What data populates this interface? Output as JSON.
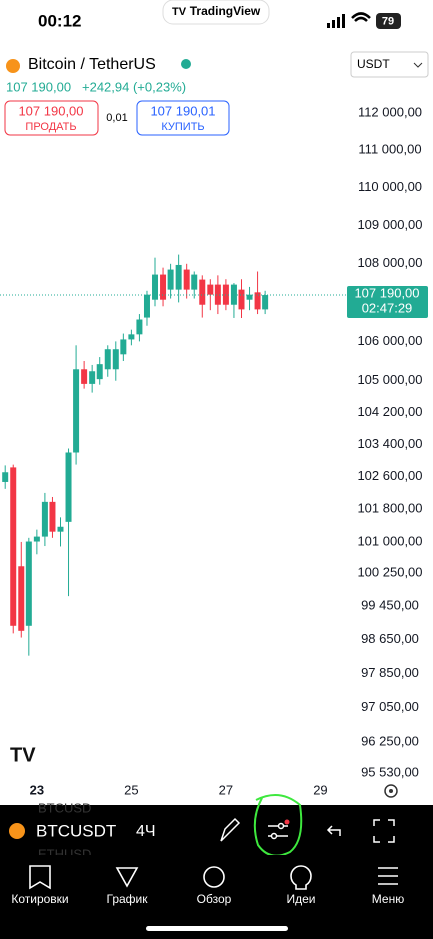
{
  "status_bar": {
    "time": "00:12",
    "app": "TradingView",
    "battery": "79"
  },
  "header": {
    "symbol": "Bitcoin / TetherUS",
    "currency": "USDT",
    "price": "107 190,00",
    "change": "+242,94 (+0,23%)",
    "sell": {
      "price": "107 190,00",
      "label": "ПРОДАТЬ"
    },
    "spread": "0,01",
    "buy": {
      "price": "107 190,01",
      "label": "КУПИТЬ"
    }
  },
  "chart_data": {
    "type": "candlestick",
    "log_scale": true,
    "grid": false,
    "up_color": "#22ab94",
    "down_color": "#f23645",
    "x": [
      22.33,
      22.5,
      22.67,
      22.83,
      23,
      23.17,
      23.33,
      23.5,
      23.67,
      23.83,
      24,
      24.17,
      24.33,
      24.5,
      24.67,
      24.83,
      25,
      25.17,
      25.33,
      25.5,
      25.67,
      25.83,
      26,
      26.17,
      26.33,
      26.5,
      26.67,
      26.83,
      27,
      27.17,
      27.33,
      27.5,
      27.67,
      27.83
    ],
    "open": [
      102470,
      102830,
      100410,
      98980,
      101010,
      101130,
      101980,
      101250,
      101490,
      103200,
      105290,
      104920,
      105040,
      105290,
      105290,
      105670,
      106050,
      106180,
      106610,
      107070,
      107720,
      107330,
      107330,
      107850,
      107330,
      107590,
      107460,
      107460,
      107460,
      106940,
      107330,
      107070,
      107260,
      106820
    ],
    "high": [
      102880,
      102900,
      101000,
      101100,
      101300,
      102200,
      102100,
      101600,
      103300,
      105900,
      105500,
      105400,
      105600,
      105900,
      106000,
      106200,
      106300,
      106700,
      107300,
      108160,
      107900,
      108000,
      108240,
      108000,
      107800,
      107700,
      107600,
      107700,
      107600,
      107500,
      107600,
      107400,
      107800,
      107300
    ],
    "low": [
      102300,
      98800,
      98700,
      98270,
      100700,
      100900,
      101100,
      100890,
      99690,
      102900,
      104800,
      104700,
      104900,
      105100,
      105000,
      105500,
      105900,
      106000,
      106400,
      106900,
      106900,
      107100,
      107000,
      107100,
      107100,
      106610,
      106800,
      106700,
      106800,
      106600,
      106600,
      106800,
      106700,
      106700
    ],
    "close": [
      102710,
      98980,
      98860,
      101010,
      101130,
      101980,
      101250,
      101370,
      103200,
      105290,
      104920,
      105240,
      105420,
      105800,
      105800,
      106050,
      106180,
      106560,
      107200,
      107720,
      107070,
      107850,
      107970,
      107330,
      107720,
      106940,
      107200,
      106940,
      106940,
      107460,
      106820,
      107200,
      106820,
      107190
    ],
    "xlim": [
      22.22,
      29.52
    ],
    "xticks": [
      23,
      25,
      27,
      29
    ],
    "ylim": [
      95370,
      112890
    ],
    "yticks": [
      {
        "value": 112000,
        "label": "112 000,00"
      },
      {
        "value": 111000,
        "label": "111 000,00"
      },
      {
        "value": 110000,
        "label": "110 000,00"
      },
      {
        "value": 109000,
        "label": "109 000,00"
      },
      {
        "value": 108000,
        "label": "108 000,00"
      },
      {
        "value": 106000,
        "label": "106 000,00"
      },
      {
        "value": 105000,
        "label": "105 000,00"
      },
      {
        "value": 104200,
        "label": "104 200,00"
      },
      {
        "value": 103400,
        "label": "103 400,00"
      },
      {
        "value": 102600,
        "label": "102 600,00"
      },
      {
        "value": 101800,
        "label": "101 800,00"
      },
      {
        "value": 101000,
        "label": "101 000,00"
      },
      {
        "value": 100250,
        "label": "100 250,00"
      },
      {
        "value": 99450,
        "label": "99 450,00"
      },
      {
        "value": 98650,
        "label": "98 650,00"
      },
      {
        "value": 97850,
        "label": "97 850,00"
      },
      {
        "value": 97050,
        "label": "97 050,00"
      },
      {
        "value": 96250,
        "label": "96 250,00"
      },
      {
        "value": 95530,
        "label": "95 530,00"
      }
    ],
    "last_price": {
      "value": 107190,
      "label": "107 190,00",
      "time": "02:47:29"
    }
  },
  "toolbar": {
    "symbol": "BTCUSDT",
    "interval": "4Ч",
    "watchlist": [
      "BTCUSD",
      "ETHUSD"
    ]
  },
  "nav": {
    "items": [
      "Котировки",
      "График",
      "Обзор",
      "Идеи",
      "Меню"
    ]
  }
}
